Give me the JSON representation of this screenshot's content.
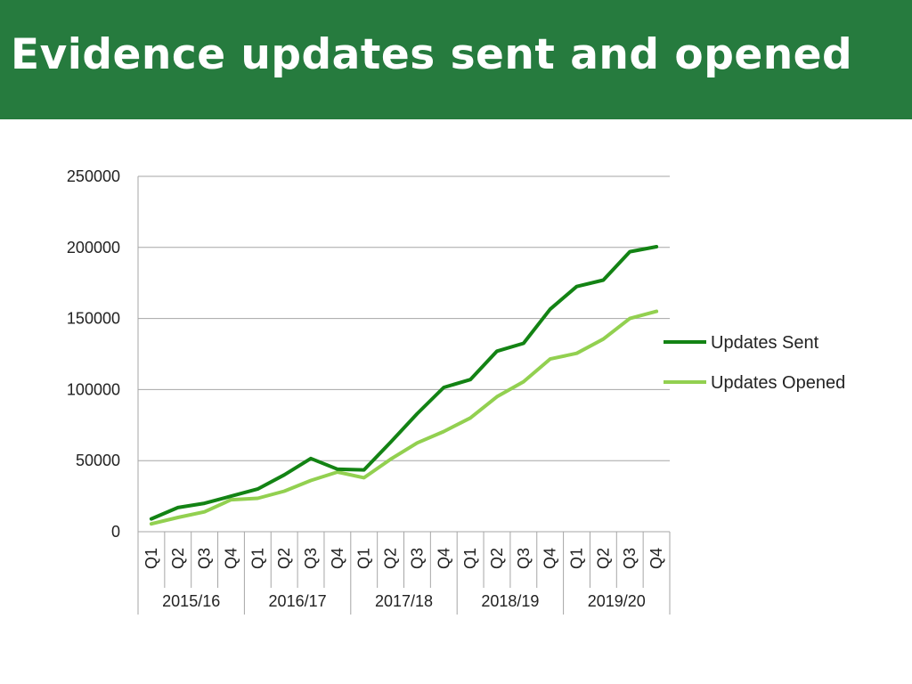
{
  "slide": {
    "title": "Evidence updates sent and opened"
  },
  "colors": {
    "header_bg": "#267b3e",
    "title_text": "#ffffff",
    "sent": "#138314",
    "opened": "#92d050",
    "grid": "#a6a6a6"
  },
  "chart_data": {
    "type": "line",
    "title": "",
    "xlabel": "",
    "ylabel": "",
    "ylim": [
      0,
      250000
    ],
    "yticks": [
      0,
      50000,
      100000,
      150000,
      200000,
      250000
    ],
    "grid": true,
    "legend_position": "right",
    "categories": [
      "Q1",
      "Q2",
      "Q3",
      "Q4",
      "Q1",
      "Q2",
      "Q3",
      "Q4",
      "Q1",
      "Q2",
      "Q3",
      "Q4",
      "Q1",
      "Q2",
      "Q3",
      "Q4",
      "Q1",
      "Q2",
      "Q3",
      "Q4"
    ],
    "groups": [
      "2015/16",
      "2016/17",
      "2017/18",
      "2018/19",
      "2019/20"
    ],
    "series": [
      {
        "name": "Updates Sent",
        "color": "#138314",
        "values": [
          9000,
          17000,
          20000,
          25000,
          30000,
          40000,
          51500,
          44000,
          43500,
          63000,
          83000,
          101500,
          107000,
          127000,
          132500,
          156500,
          172500,
          177000,
          197000,
          200500
        ]
      },
      {
        "name": "Updates Opened",
        "color": "#92d050",
        "values": [
          5500,
          10000,
          14000,
          22500,
          23500,
          28500,
          36000,
          42000,
          38000,
          51000,
          62500,
          70500,
          80000,
          95000,
          105500,
          121500,
          125500,
          135500,
          150000,
          155000
        ]
      }
    ]
  }
}
